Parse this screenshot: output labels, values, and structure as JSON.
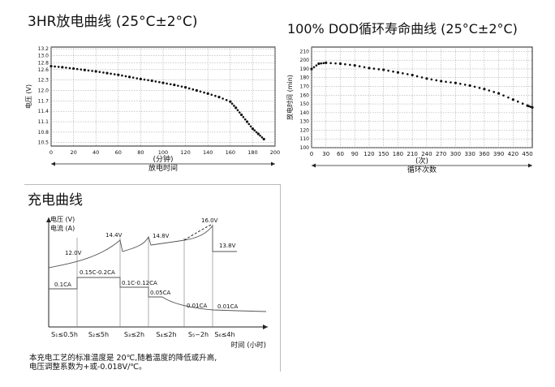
{
  "titles": {
    "chart1": "3HR放电曲线 (25°C±2°C)",
    "chart2": "100%  DOD循环寿命曲线 (25°C±2°C)",
    "chart3": "充电曲线"
  },
  "caption": {
    "line1": "本充电工艺的标准温度是 20℃,随着温度的降低或升高,",
    "line2": "电压调整系数为+或-0.018V/℃。"
  },
  "chart_data": [
    {
      "type": "scatter",
      "title": "3HR放电曲线 (25°C±2°C)",
      "ylabel": "电压 (V)",
      "xlabel_unit": "(分钟)",
      "xlabel": "放电时间",
      "xlim": [
        0,
        200
      ],
      "ylim": [
        10.4,
        13.25
      ],
      "xticks": [
        0,
        20,
        40,
        60,
        80,
        100,
        120,
        140,
        160,
        180,
        200
      ],
      "yticks": [
        10.5,
        10.8,
        11.1,
        11.4,
        11.7,
        12.0,
        12.3,
        12.6,
        12.8,
        13.0,
        13.2
      ],
      "grid": true,
      "series": [
        {
          "x": [
            0,
            10,
            20,
            30,
            40,
            50,
            60,
            70,
            80,
            90,
            100,
            110,
            120,
            130,
            140,
            150,
            160,
            165,
            170,
            175,
            180,
            185,
            190
          ],
          "y": [
            12.7,
            12.67,
            12.63,
            12.59,
            12.55,
            12.5,
            12.45,
            12.39,
            12.33,
            12.28,
            12.22,
            12.16,
            12.09,
            12.0,
            11.91,
            11.81,
            11.68,
            11.5,
            11.3,
            11.1,
            10.9,
            10.75,
            10.6
          ]
        }
      ]
    },
    {
      "type": "scatter",
      "title": "100%  DOD循环寿命曲线 (25°C±2°C)",
      "ylabel": "放电时间 (min)",
      "xlabel_unit": "(次)",
      "xlabel": "循环次数",
      "xlim": [
        0,
        460
      ],
      "ylim": [
        100,
        215
      ],
      "xticks": [
        0,
        30,
        60,
        90,
        120,
        150,
        180,
        210,
        240,
        270,
        300,
        330,
        360,
        390,
        420,
        450
      ],
      "yticks": [
        100,
        110,
        120,
        130,
        140,
        150,
        160,
        170,
        180,
        190,
        200,
        210
      ],
      "grid": true,
      "series": [
        {
          "x": [
            0,
            15,
            30,
            60,
            90,
            120,
            150,
            180,
            210,
            240,
            270,
            300,
            330,
            360,
            390,
            420,
            450,
            460
          ],
          "y": [
            190,
            196,
            197,
            196,
            194,
            191,
            189,
            186,
            183,
            179,
            176,
            174,
            171,
            167,
            162,
            155,
            148,
            146
          ]
        }
      ]
    },
    {
      "type": "line",
      "title": "充电曲线",
      "ylabel": "电压 (V)",
      "ylabel2": "电流 (A)",
      "xlabel": "时间 (小时)",
      "stages": [
        "S₁≤0.5h",
        "S₂≤5h",
        "S₃≤2h",
        "S₄≤2h",
        "S₅~2h",
        "S₆≤4h"
      ],
      "voltage_labels": [
        "12.0V",
        "14.4V",
        "14.8V",
        "16.0V",
        "13.8V"
      ],
      "current_labels": [
        "0.1CA",
        "0.15C-0.2CA",
        "0.1C-0.12CA",
        "0.05CA",
        "0.01CA",
        "0.01CA"
      ]
    }
  ]
}
